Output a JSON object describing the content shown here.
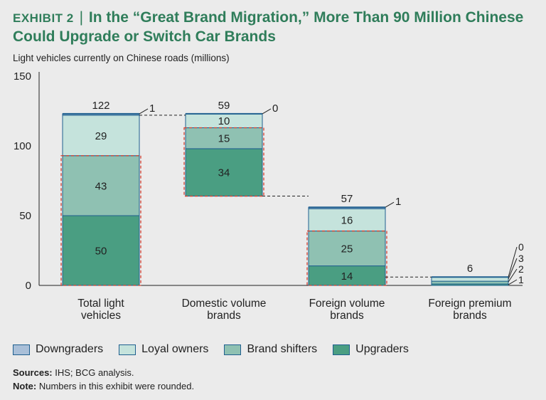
{
  "header": {
    "exhibit": "EXHIBIT 2",
    "separator": "|",
    "title": "In the “Great Brand Migration,” More Than 90 Million Chinese Could Upgrade or Switch Car Brands",
    "subtitle": "Light vehicles currently on Chinese roads (millions)"
  },
  "colors": {
    "downgraders": "#a9bfd8",
    "loyal": "#c5e3dc",
    "shifters": "#8fc1b2",
    "upgraders": "#4a9e82",
    "border": "#1f5f8f",
    "dash_red": "#d8402e",
    "title_green": "#2f7d5a"
  },
  "chart_data": {
    "type": "bar",
    "subtype": "waterfall-stacked",
    "ylim": [
      0,
      150
    ],
    "yticks": [
      0,
      50,
      100,
      150
    ],
    "categories": [
      "Total light vehicles",
      "Domestic volume brands",
      "Foreign volume brands",
      "Foreign premium brands"
    ],
    "category_lines": [
      [
        "Total light",
        "vehicles"
      ],
      [
        "Domestic volume",
        "brands"
      ],
      [
        "Foreign volume",
        "brands"
      ],
      [
        "Foreign premium",
        "brands"
      ]
    ],
    "series": [
      {
        "name": "Upgraders",
        "key": "upgraders",
        "values": [
          50,
          34,
          14,
          1
        ]
      },
      {
        "name": "Brand shifters",
        "key": "shifters",
        "values": [
          43,
          15,
          25,
          2
        ]
      },
      {
        "name": "Loyal owners",
        "key": "loyal",
        "values": [
          29,
          10,
          16,
          3
        ]
      },
      {
        "name": "Downgraders",
        "key": "downgraders",
        "values": [
          1,
          0,
          1,
          0
        ]
      }
    ],
    "bases": [
      0,
      64,
      0,
      0
    ],
    "totals": [
      122,
      59,
      57,
      6
    ],
    "highlighted_segments": [
      "Upgraders",
      "Brand shifters"
    ]
  },
  "legend": [
    {
      "label": "Downgraders",
      "key": "downgraders"
    },
    {
      "label": "Loyal owners",
      "key": "loyal"
    },
    {
      "label": "Brand shifters",
      "key": "shifters"
    },
    {
      "label": "Upgraders",
      "key": "upgraders"
    }
  ],
  "notes": {
    "sources_label": "Sources:",
    "sources_text": "IHS; BCG analysis.",
    "note_label": "Note:",
    "note_text": "Numbers in this exhibit were rounded."
  }
}
